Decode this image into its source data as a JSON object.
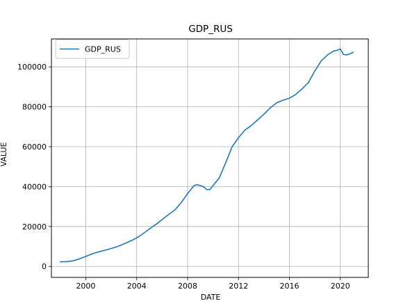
{
  "chart_data": {
    "type": "line",
    "title": "GDP_RUS",
    "xlabel": "DATE",
    "ylabel": "VALUE",
    "xlim": [
      1997.3,
      2022.2
    ],
    "ylim": [
      -5500,
      114000
    ],
    "xticks": [
      2000,
      2004,
      2008,
      2012,
      2016,
      2020
    ],
    "yticks": [
      0,
      20000,
      40000,
      60000,
      80000,
      100000
    ],
    "grid": true,
    "legend_position": "upper-left",
    "series": [
      {
        "name": "GDP_RUS",
        "color": "#1f77b4",
        "x": [
          1998.0,
          1998.5,
          1999.0,
          1999.5,
          2000.0,
          2000.5,
          2001.0,
          2001.5,
          2002.0,
          2002.5,
          2003.0,
          2003.5,
          2004.0,
          2004.5,
          2005.0,
          2005.5,
          2006.0,
          2006.5,
          2007.0,
          2007.5,
          2008.0,
          2008.5,
          2008.75,
          2009.0,
          2009.25,
          2009.5,
          2009.75,
          2010.0,
          2010.5,
          2011.0,
          2011.5,
          2012.0,
          2012.5,
          2013.0,
          2013.5,
          2014.0,
          2014.5,
          2015.0,
          2015.5,
          2016.0,
          2016.5,
          2017.0,
          2017.5,
          2018.0,
          2018.5,
          2019.0,
          2019.25,
          2019.5,
          2019.75,
          2020.0,
          2020.25,
          2020.5,
          2020.75,
          2021.0
        ],
        "y": [
          2300,
          2400,
          2800,
          3800,
          5000,
          6300,
          7300,
          8100,
          9000,
          10000,
          11300,
          12700,
          14300,
          16400,
          18800,
          21000,
          23500,
          26000,
          28300,
          32000,
          36500,
          40500,
          41000,
          40500,
          40000,
          38500,
          38500,
          40500,
          44500,
          52000,
          60000,
          64500,
          68300,
          70600,
          73400,
          76300,
          79500,
          82000,
          83300,
          84300,
          86200,
          89000,
          92200,
          98000,
          103000,
          106000,
          107000,
          108000,
          108300,
          109000,
          106200,
          106000,
          106500,
          107300
        ]
      }
    ]
  }
}
